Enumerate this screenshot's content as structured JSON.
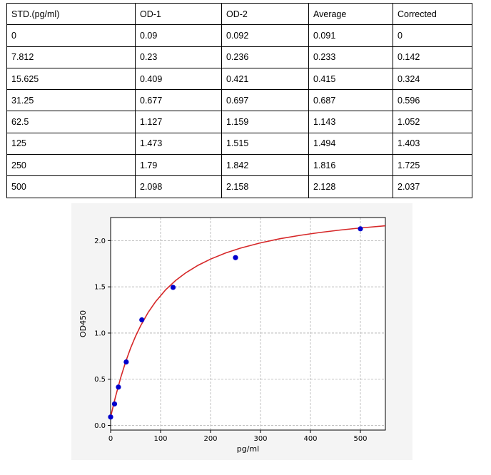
{
  "table": {
    "headers": [
      "STD.(pg/ml)",
      "OD-1",
      "OD-2",
      "Average",
      "Corrected"
    ],
    "rows": [
      [
        "0",
        "0.09",
        "0.092",
        "0.091",
        "0"
      ],
      [
        "7.812",
        "0.23",
        "0.236",
        "0.233",
        "0.142"
      ],
      [
        "15.625",
        "0.409",
        "0.421",
        "0.415",
        "0.324"
      ],
      [
        "31.25",
        "0.677",
        "0.697",
        "0.687",
        "0.596"
      ],
      [
        "62.5",
        "1.127",
        "1.159",
        "1.143",
        "1.052"
      ],
      [
        "125",
        "1.473",
        "1.515",
        "1.494",
        "1.403"
      ],
      [
        "250",
        "1.79",
        "1.842",
        "1.816",
        "1.725"
      ],
      [
        "500",
        "2.098",
        "2.158",
        "2.128",
        "2.037"
      ]
    ]
  },
  "chart_data": {
    "type": "scatter",
    "xlabel": "pg/ml",
    "ylabel": "OD450",
    "xlim": [
      0,
      550
    ],
    "ylim": [
      -0.05,
      2.25
    ],
    "xticks": [
      0,
      100,
      200,
      300,
      400,
      500
    ],
    "yticks": [
      0.0,
      0.5,
      1.0,
      1.5,
      2.0
    ],
    "ytick_labels": [
      "0.0",
      "0.5",
      "1.0",
      "1.5",
      "2.0"
    ],
    "grid": true,
    "points": {
      "x": [
        0,
        7.812,
        15.625,
        31.25,
        62.5,
        125,
        250,
        500
      ],
      "y": [
        0.091,
        0.233,
        0.415,
        0.687,
        1.143,
        1.494,
        1.816,
        2.128
      ],
      "color": "#0000cc"
    },
    "fit_curve": {
      "x": [
        0,
        5,
        10,
        20,
        30,
        40,
        50,
        60,
        75,
        90,
        110,
        130,
        150,
        175,
        200,
        230,
        260,
        300,
        340,
        380,
        420,
        460,
        500,
        550
      ],
      "y": [
        0.091,
        0.206,
        0.315,
        0.514,
        0.687,
        0.837,
        0.966,
        1.078,
        1.222,
        1.339,
        1.467,
        1.568,
        1.65,
        1.733,
        1.8,
        1.866,
        1.919,
        1.976,
        2.022,
        2.058,
        2.089,
        2.115,
        2.137,
        2.161
      ],
      "color": "#d62728"
    }
  }
}
